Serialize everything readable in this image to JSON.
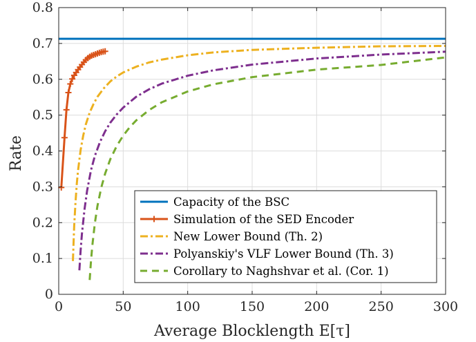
{
  "chart_data": {
    "type": "line",
    "xlabel": "Average Blocklength E[τ]",
    "ylabel": "Rate",
    "xlim": [
      0,
      300
    ],
    "ylim": [
      0,
      0.8
    ],
    "xticks": [
      "0",
      "50",
      "100",
      "150",
      "200",
      "250",
      "300"
    ],
    "yticks": [
      "0",
      "0.1",
      "0.2",
      "0.3",
      "0.4",
      "0.5",
      "0.6",
      "0.7",
      "0.8"
    ],
    "grid": true,
    "legend_position": "bottom-right",
    "series": [
      {
        "name": "Capacity of the BSC",
        "color": "#0072BD",
        "style": "solid",
        "marker": "none",
        "x": [
          0,
          300
        ],
        "y": [
          0.713,
          0.713
        ]
      },
      {
        "name": "Simulation of the SED Encoder",
        "color": "#D95319",
        "style": "solid",
        "marker": "plus",
        "x": [
          2,
          4.5,
          6,
          7.5,
          9,
          10.5,
          12,
          13.5,
          15,
          16.5,
          18,
          19.5,
          21,
          22.5,
          24,
          25.5,
          27,
          28.5,
          30,
          31.5,
          33,
          34.5,
          36
        ],
        "y": [
          0.298,
          0.437,
          0.515,
          0.563,
          0.587,
          0.601,
          0.611,
          0.619,
          0.627,
          0.634,
          0.641,
          0.648,
          0.654,
          0.659,
          0.663,
          0.666,
          0.668,
          0.67,
          0.672,
          0.674,
          0.676,
          0.677,
          0.678
        ]
      },
      {
        "name": "New Lower Bound (Th. 2)",
        "color": "#EDB120",
        "style": "dashdot",
        "marker": "none",
        "x": [
          11,
          12,
          13,
          14,
          15,
          17,
          19,
          21,
          24,
          27,
          30,
          35,
          40,
          45,
          50,
          60,
          70,
          80,
          100,
          120,
          150,
          200,
          250,
          300
        ],
        "y": [
          0.093,
          0.192,
          0.256,
          0.308,
          0.346,
          0.403,
          0.443,
          0.474,
          0.507,
          0.531,
          0.551,
          0.575,
          0.594,
          0.608,
          0.619,
          0.635,
          0.647,
          0.655,
          0.667,
          0.675,
          0.682,
          0.688,
          0.692,
          0.693
        ]
      },
      {
        "name": "Polyanskiy's VLF Lower Bound (Th. 3)",
        "color": "#7E2F8E",
        "style": "dashdot",
        "marker": "none",
        "x": [
          16,
          17,
          18,
          20,
          22,
          25,
          28,
          32,
          36,
          40,
          45,
          50,
          60,
          70,
          80,
          100,
          120,
          150,
          200,
          250,
          300
        ],
        "y": [
          0.067,
          0.123,
          0.169,
          0.237,
          0.289,
          0.346,
          0.386,
          0.425,
          0.455,
          0.479,
          0.502,
          0.521,
          0.551,
          0.572,
          0.588,
          0.61,
          0.625,
          0.641,
          0.658,
          0.669,
          0.677
        ]
      },
      {
        "name": "Corollary to Naghshvar et al. (Cor. 1)",
        "color": "#77AC30",
        "style": "dashed",
        "marker": "none",
        "x": [
          24,
          25,
          26,
          28,
          30,
          33,
          36,
          40,
          45,
          50,
          55,
          60,
          70,
          80,
          100,
          120,
          150,
          200,
          250,
          300
        ],
        "y": [
          0.04,
          0.092,
          0.134,
          0.198,
          0.246,
          0.298,
          0.337,
          0.377,
          0.414,
          0.443,
          0.466,
          0.485,
          0.514,
          0.536,
          0.566,
          0.586,
          0.606,
          0.627,
          0.64,
          0.661
        ]
      }
    ]
  }
}
